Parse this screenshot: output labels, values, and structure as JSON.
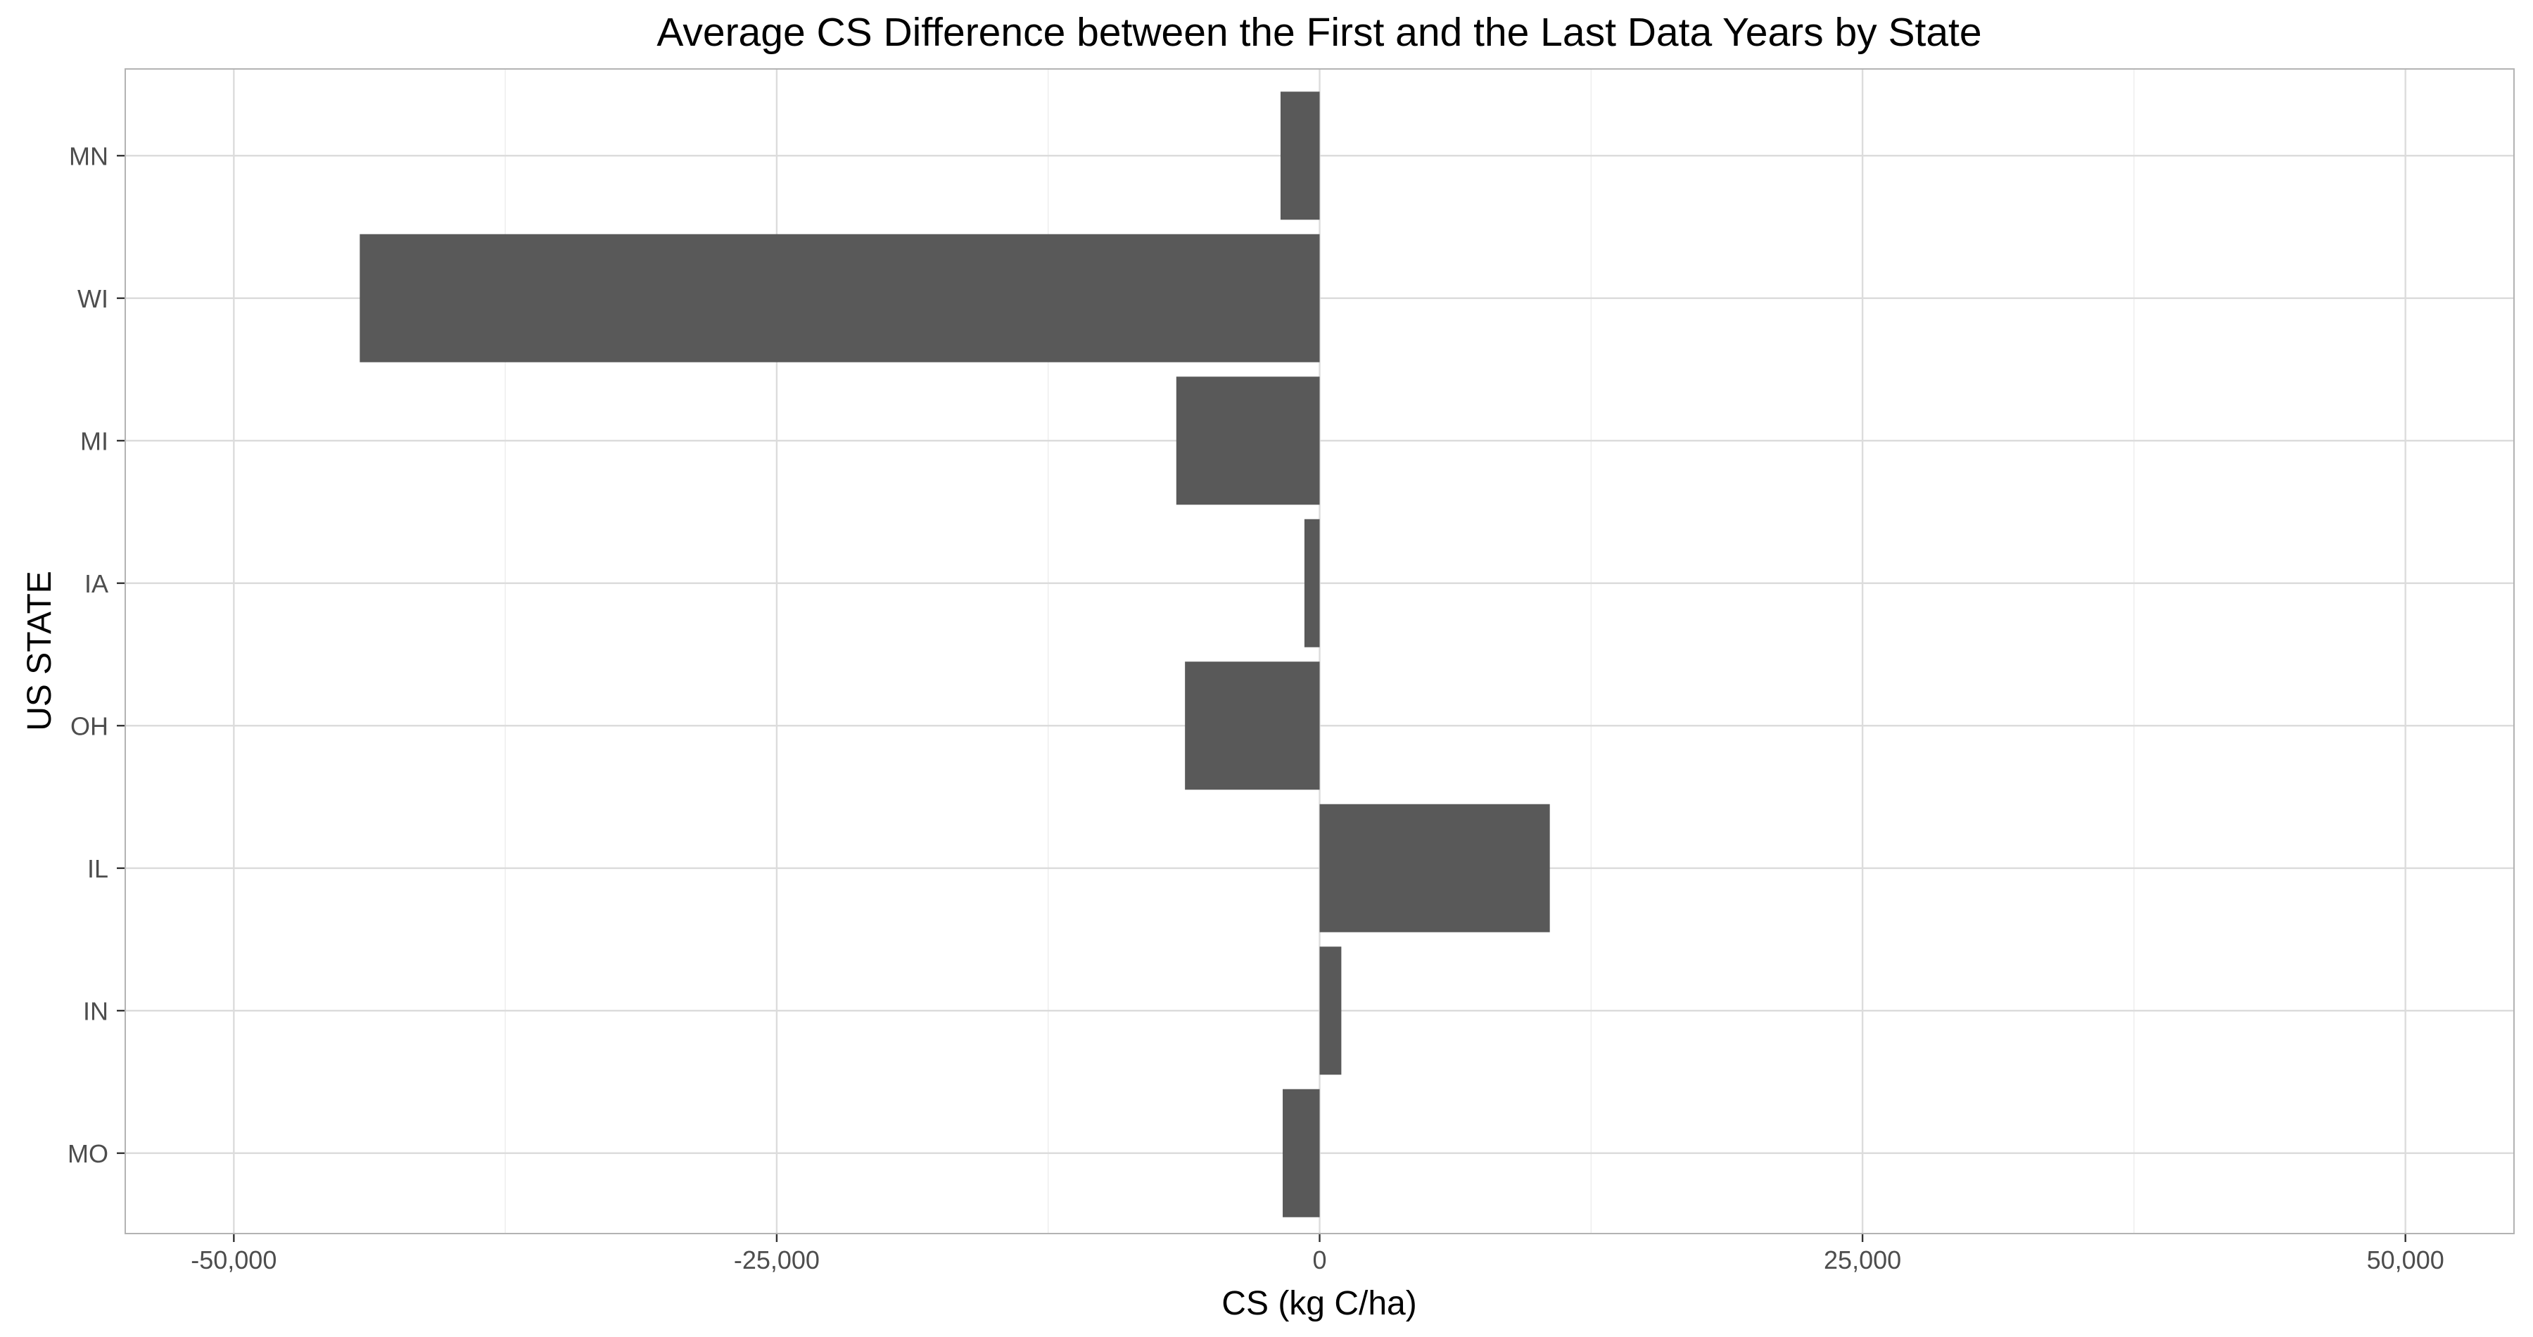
{
  "chart_data": {
    "type": "bar",
    "orientation": "horizontal",
    "title": "Average CS Difference between the First and the Last Data Years by State",
    "xlabel": "CS (kg C/ha)",
    "ylabel": "US STATE",
    "categories": [
      "MN",
      "WI",
      "MI",
      "IA",
      "OH",
      "IL",
      "IN",
      "MO"
    ],
    "values": [
      -1800,
      -44200,
      -6600,
      -700,
      -6200,
      10600,
      1000,
      -1700
    ],
    "xlim": [
      -55000,
      55000
    ],
    "x_ticks": [
      -50000,
      -25000,
      0,
      25000,
      50000
    ],
    "x_tick_labels": [
      "-50,000",
      "-25,000",
      "0",
      "25,000",
      "50,000"
    ],
    "grid": true,
    "legend": "none",
    "bar_color": "#595959",
    "grid_color": "#ebebeb",
    "panel_border_color": "#b3b3b3"
  }
}
